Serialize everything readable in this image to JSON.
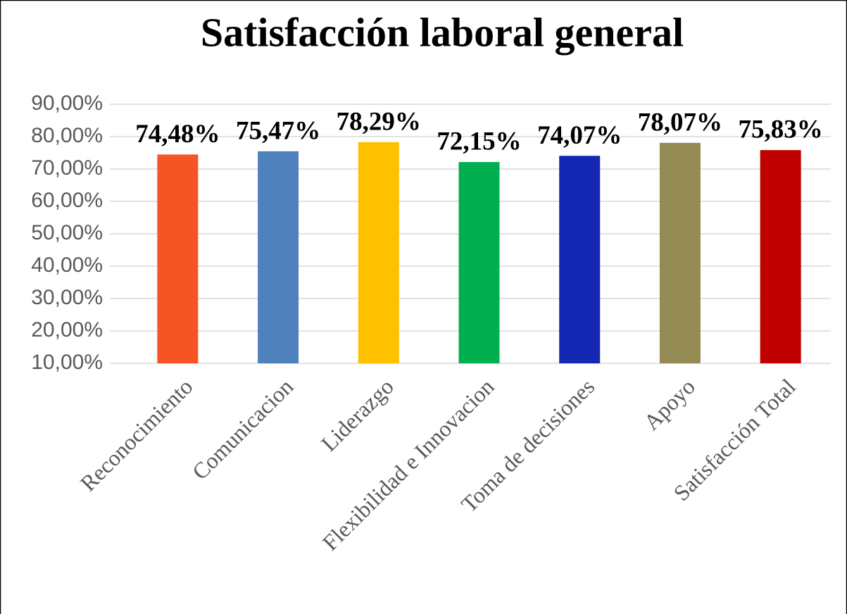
{
  "chart_data": {
    "type": "bar",
    "title": "Satisfacción laboral general",
    "categories": [
      "Reconocimiento",
      "Comunicacion",
      "Liderazgo",
      "Flexibilidad e Innovacion",
      "Toma de decisiones",
      "Apoyo",
      "Satisfacción Total"
    ],
    "values": [
      74.48,
      75.47,
      78.29,
      72.15,
      74.07,
      78.07,
      75.83
    ],
    "value_labels": [
      "74,48%",
      "75,47%",
      "78,29%",
      "72,15%",
      "74,07%",
      "78,07%",
      "75,83%"
    ],
    "colors": [
      "#f55525",
      "#4f81bd",
      "#ffc000",
      "#00b050",
      "#1428b4",
      "#948a54",
      "#c00000"
    ],
    "ylim": [
      10,
      90
    ],
    "yticks": [
      {
        "value": 10,
        "label": "10,00%"
      },
      {
        "value": 20,
        "label": "20,00%"
      },
      {
        "value": 30,
        "label": "30,00%"
      },
      {
        "value": 40,
        "label": "40,00%"
      },
      {
        "value": 50,
        "label": "50,00%"
      },
      {
        "value": 60,
        "label": "60,00%"
      },
      {
        "value": 70,
        "label": "70,00%"
      },
      {
        "value": 80,
        "label": "80,00%"
      },
      {
        "value": 90,
        "label": "90,00%"
      }
    ],
    "grid": true
  }
}
